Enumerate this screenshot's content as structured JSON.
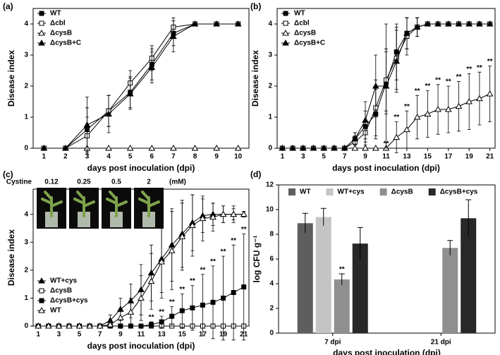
{
  "chart_data": [
    {
      "type": "line",
      "panel": "(a)",
      "xlabel": "days post inoculation (dpi)",
      "ylabel": "Disease index",
      "x": [
        1,
        2,
        3,
        4,
        5,
        6,
        7,
        8,
        9,
        10
      ],
      "xlim": [
        0.5,
        10.5
      ],
      "xticks": [
        1,
        2,
        3,
        4,
        5,
        6,
        7,
        8,
        9,
        10
      ],
      "ylim": [
        0,
        4.5
      ],
      "yticks": [
        0,
        1,
        2,
        3,
        4
      ],
      "legend": "upper left",
      "series": [
        {
          "name": "WT",
          "color": "#000000",
          "marker": "square",
          "filled": true,
          "values": [
            0,
            0,
            0.6,
            1.2,
            1.8,
            2.7,
            3.7,
            4,
            4,
            4
          ],
          "errors": [
            0,
            0,
            0.7,
            0.5,
            0.5,
            0.5,
            0.4,
            0,
            0,
            0
          ]
        },
        {
          "name": "Δcbl",
          "color": "#000000",
          "marker": "square",
          "filled": false,
          "values": [
            0,
            0,
            0.4,
            1.2,
            2.1,
            2.9,
            3.9,
            4,
            4,
            4
          ],
          "errors": [
            0,
            0,
            0.6,
            0.5,
            0.4,
            0.4,
            0.3,
            0,
            0,
            0
          ]
        },
        {
          "name": "ΔcysB",
          "color": "#000000",
          "marker": "triangle",
          "filled": false,
          "values": [
            0,
            0,
            0,
            0,
            0,
            0,
            0,
            0,
            0,
            0
          ],
          "errors": [
            0,
            0,
            0,
            0,
            0,
            0,
            0,
            0,
            0,
            0
          ]
        },
        {
          "name": "ΔcysB+C",
          "color": "#000000",
          "marker": "triangle",
          "filled": true,
          "values": [
            0,
            0,
            0.75,
            1.1,
            1.75,
            2.6,
            3.6,
            4,
            4,
            4
          ],
          "errors": [
            0,
            0,
            0.9,
            0.6,
            0.5,
            0.5,
            0.5,
            0,
            0,
            0
          ]
        }
      ]
    },
    {
      "type": "line",
      "panel": "(b)",
      "xlabel": "days post inoculation (dpi)",
      "ylabel": "Disease index",
      "x": [
        1,
        2,
        3,
        4,
        5,
        6,
        7,
        8,
        9,
        10,
        11,
        12,
        13,
        14,
        15,
        16,
        17,
        18,
        19,
        20,
        21
      ],
      "xlim": [
        0.5,
        21.5
      ],
      "xticks": [
        1,
        3,
        5,
        7,
        9,
        11,
        13,
        15,
        17,
        19,
        21
      ],
      "ylim": [
        0,
        4.5
      ],
      "yticks": [
        0,
        1,
        2,
        3,
        4
      ],
      "legend": "upper left",
      "series": [
        {
          "name": "WT",
          "color": "#000000",
          "marker": "square",
          "filled": true,
          "values": [
            0,
            0,
            0,
            0,
            0,
            0,
            0,
            0.3,
            0.7,
            1.1,
            2.1,
            3.1,
            3.7,
            3.9,
            4,
            4,
            4,
            4,
            4,
            4,
            4
          ],
          "errors": [
            0,
            0,
            0,
            0,
            0,
            0,
            0,
            0.2,
            0.5,
            0.8,
            1.0,
            0.9,
            0.5,
            0.3,
            0,
            0,
            0,
            0,
            0,
            0,
            0
          ]
        },
        {
          "name": "Δcbl",
          "color": "#000000",
          "marker": "square",
          "filled": false,
          "values": [
            0,
            0,
            0,
            0,
            0,
            0,
            0,
            0.2,
            0.5,
            1.3,
            2.2,
            2.9,
            3.6,
            3.9,
            4,
            4,
            4,
            4,
            4,
            4,
            4
          ],
          "errors": [
            0,
            0,
            0,
            0,
            0,
            0,
            0,
            0.2,
            0.4,
            0.9,
            1.0,
            1.0,
            0.6,
            0.3,
            0,
            0,
            0,
            0,
            0,
            0,
            0
          ]
        },
        {
          "name": "ΔcysB",
          "color": "#000000",
          "marker": "triangle",
          "filled": false,
          "values": [
            0,
            0,
            0,
            0,
            0,
            0,
            0,
            0,
            0,
            0,
            0,
            0.35,
            0.6,
            1.0,
            1.1,
            1.25,
            1.25,
            1.35,
            1.5,
            1.6,
            1.75
          ],
          "errors": [
            0,
            0,
            0,
            0,
            0,
            0,
            0,
            0,
            0,
            0,
            0,
            0.5,
            0.6,
            0.7,
            0.75,
            0.8,
            0.75,
            0.8,
            0.9,
            0.85,
            0.9
          ],
          "significance": [
            null,
            null,
            null,
            null,
            null,
            null,
            null,
            null,
            null,
            null,
            "**",
            "**",
            "**",
            "**",
            "**",
            "**",
            "**",
            "**",
            "**",
            "**",
            "**"
          ]
        },
        {
          "name": "ΔcysB+C",
          "color": "#000000",
          "marker": "triangle",
          "filled": true,
          "values": [
            0,
            0,
            0,
            0,
            0,
            0,
            0,
            0.3,
            0.9,
            2.0,
            2.0,
            2.8,
            3.7,
            3.9,
            4,
            4,
            4,
            4,
            4,
            4,
            4
          ],
          "errors": [
            0,
            0,
            0,
            0,
            0,
            0,
            0,
            0.2,
            0.6,
            1.0,
            2.0,
            1.0,
            0.5,
            0.3,
            0,
            0,
            0,
            0,
            0,
            0,
            0
          ]
        }
      ]
    },
    {
      "type": "line",
      "panel": "(c)",
      "xlabel": "days post inoculation (dpi)",
      "ylabel": "Disease index",
      "x": [
        1,
        2,
        3,
        4,
        5,
        6,
        7,
        8,
        9,
        10,
        11,
        12,
        13,
        14,
        15,
        16,
        17,
        18,
        19,
        20,
        21
      ],
      "xlim": [
        0.5,
        21.5
      ],
      "xticks": [
        1,
        3,
        5,
        7,
        9,
        11,
        13,
        15,
        17,
        19,
        21
      ],
      "ylim": [
        0,
        4.9
      ],
      "yticks": [
        0,
        1,
        2,
        3,
        4
      ],
      "legend": "lower left",
      "inset": {
        "label": "Cystine",
        "concentrations": [
          "0.12",
          "0.25",
          "0.5",
          "2"
        ],
        "unit": "(mM)"
      },
      "series": [
        {
          "name": "WT+cys",
          "color": "#000000",
          "marker": "triangle",
          "filled": true,
          "values": [
            0,
            0,
            0,
            0,
            0,
            0,
            0,
            0.2,
            0.6,
            0.9,
            1.3,
            1.9,
            2.4,
            2.9,
            3.3,
            3.7,
            3.95,
            4,
            4,
            4,
            4
          ],
          "errors": [
            0,
            0,
            0,
            0,
            0,
            0,
            0,
            0.2,
            0.4,
            0.6,
            0.9,
            1.0,
            1.2,
            1.3,
            1.2,
            1.0,
            0.6,
            0.4,
            0.3,
            0.3,
            0.1
          ]
        },
        {
          "name": "ΔcysB",
          "color": "#000000",
          "marker": "square",
          "filled": false,
          "values": [
            0,
            0,
            0,
            0,
            0,
            0,
            0,
            0,
            0,
            0,
            0,
            0,
            0,
            0,
            0,
            0,
            0,
            0,
            0,
            0,
            0
          ],
          "errors": [
            0,
            0,
            0,
            0,
            0,
            0,
            0,
            0,
            0,
            0,
            0,
            0,
            0,
            0,
            0,
            0,
            0,
            0,
            0,
            0,
            0
          ]
        },
        {
          "name": "ΔcysB+cys",
          "color": "#000000",
          "marker": "square",
          "filled": true,
          "values": [
            0,
            0,
            0,
            0,
            0,
            0,
            0,
            0,
            0,
            0,
            0,
            0.05,
            0.15,
            0.35,
            0.55,
            0.65,
            0.75,
            0.85,
            1.0,
            1.2,
            1.4
          ],
          "errors": [
            0,
            0,
            0,
            0,
            0,
            0,
            0,
            0,
            0,
            0,
            0,
            0.1,
            0.2,
            0.35,
            0.6,
            0.8,
            1.1,
            1.3,
            1.5,
            1.7,
            1.9
          ],
          "significance": [
            null,
            null,
            null,
            null,
            null,
            null,
            null,
            null,
            null,
            null,
            null,
            "**",
            "**",
            "**",
            "**",
            "**",
            "**",
            "**",
            "**",
            "**",
            "**"
          ]
        },
        {
          "name": "WT",
          "color": "#000000",
          "marker": "triangle",
          "filled": false,
          "values": [
            0,
            0,
            0,
            0,
            0,
            0,
            0,
            0.05,
            0.3,
            0.5,
            1.0,
            1.6,
            2.3,
            2.7,
            3.2,
            3.6,
            3.85,
            3.9,
            4,
            4,
            4
          ],
          "errors": [
            0,
            0,
            0,
            0,
            0,
            0,
            0,
            0.1,
            0.3,
            0.5,
            0.8,
            1.0,
            1.3,
            1.4,
            1.2,
            1.1,
            0.8,
            0.5,
            0.3,
            0.2,
            0.1
          ]
        }
      ]
    },
    {
      "type": "bar",
      "panel": "(d)",
      "xlabel": "days post inoculation (dpi)",
      "ylabel": "log CFU g⁻¹",
      "categories": [
        "7 dpi",
        "21 dpi"
      ],
      "ylim": [
        0,
        12
      ],
      "yticks": [
        0,
        2,
        4,
        6,
        8,
        10,
        12
      ],
      "legend": "top",
      "series": [
        {
          "name": "WT",
          "color": "#5e5e5e",
          "values": [
            8.9,
            null
          ],
          "errors": [
            0.8,
            null
          ]
        },
        {
          "name": "WT+cys",
          "color": "#c4c4c4",
          "values": [
            9.4,
            null
          ],
          "errors": [
            0.7,
            null
          ]
        },
        {
          "name": "ΔcysB",
          "color": "#8f8f8f",
          "values": [
            4.35,
            6.9
          ],
          "errors": [
            0.45,
            0.6
          ],
          "significance": [
            "**",
            null
          ]
        },
        {
          "name": "ΔcysB+cys",
          "color": "#282828",
          "values": [
            7.25,
            9.3
          ],
          "errors": [
            1.3,
            1.5
          ]
        }
      ]
    }
  ]
}
